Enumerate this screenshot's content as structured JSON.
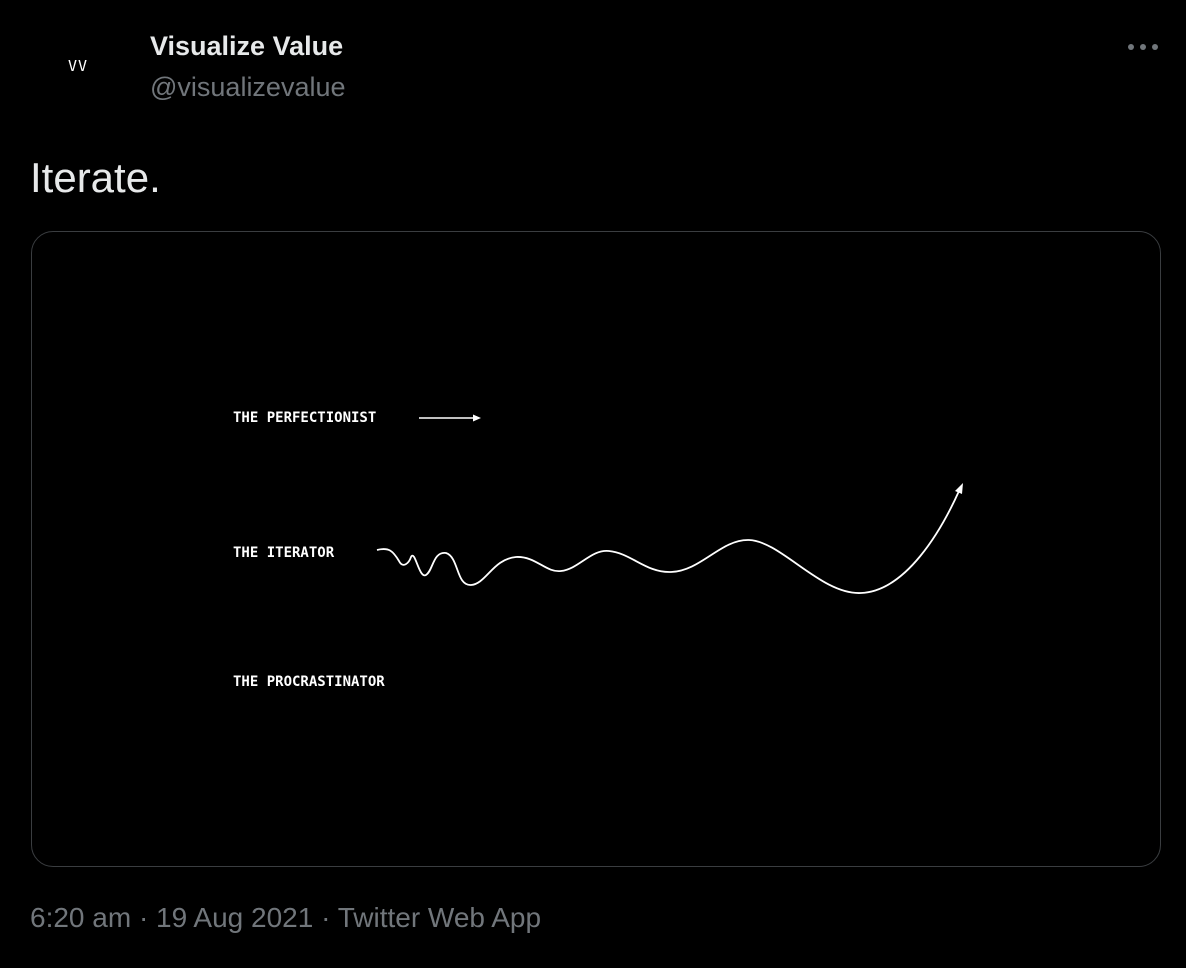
{
  "tweet": {
    "avatar": "VV",
    "author_name": "Visualize Value",
    "author_handle": "@visualizevalue",
    "text": "Iterate.",
    "image": {
      "labels": [
        "THE PERFECTIONIST",
        "THE ITERATOR",
        "THE PROCRASTINATOR"
      ]
    },
    "meta": "6:20 am · 19 Aug 2021 · Twitter Web App"
  }
}
